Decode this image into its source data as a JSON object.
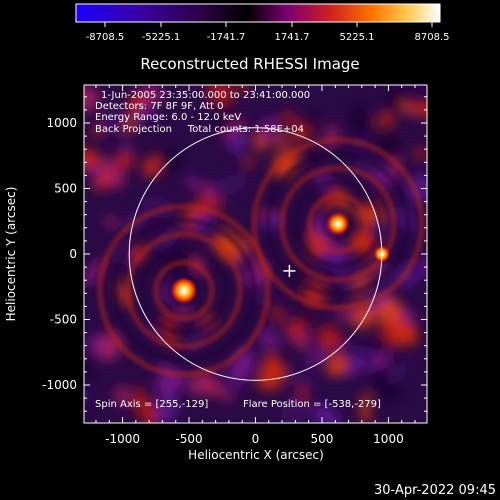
{
  "colorbar": {
    "tick_labels": [
      "-8708.5",
      "-5225.1",
      "-1741.7",
      "1741.7",
      "5225.1",
      "8708.5"
    ],
    "colors": [
      "#1a00ff",
      "#3a00a0",
      "#2b0040",
      "#000000",
      "#7a0070",
      "#d02020",
      "#ff7a00",
      "#ffd060",
      "#ffffff"
    ]
  },
  "plot": {
    "title": "Reconstructed RHESSI Image",
    "xlabel": "Heliocentric X (arcsec)",
    "ylabel": "Heliocentric Y (arcsec)",
    "x_ticks": [
      "-1000",
      "-500",
      "0",
      "500",
      "1000"
    ],
    "y_ticks": [
      "1000",
      "500",
      "0",
      "-500",
      "-1000"
    ],
    "x_range": [
      -1290,
      1290
    ],
    "y_range": [
      -1290,
      1290
    ],
    "info_lines": [
      "1-Jun-2005 23:35:00.000 to 23:41:00.000",
      "Detectors: 7F 8F 9F, Att 0",
      "Energy Range: 6.0 - 12.0 keV",
      "Back Projection     Total counts: 1.58E+04"
    ],
    "footer_left": "Spin Axis = [255,-129]",
    "footer_right": "Flare Position = [-538,-279]",
    "solar_limb_radius_arcsec": 950,
    "spin_axis_marker": [
      255,
      -129
    ],
    "sources": [
      {
        "x": -538,
        "y": -279
      },
      {
        "x": 620,
        "y": 230
      },
      {
        "x": 950,
        "y": 0
      }
    ]
  },
  "timestamp": "30-Apr-2022 09:45"
}
